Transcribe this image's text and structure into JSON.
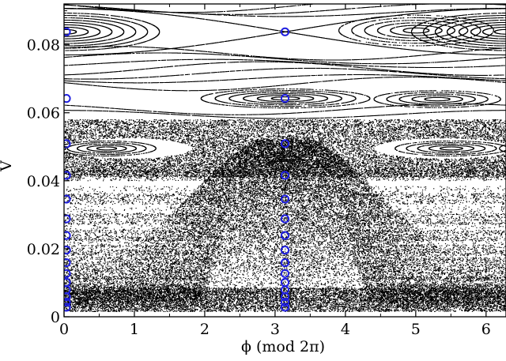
{
  "chart_data": {
    "type": "scatter",
    "title": "",
    "xlabel": "ϕ  (mod 2π)",
    "ylabel": "V",
    "xlim": [
      0,
      6.2832
    ],
    "ylim": [
      0,
      0.092
    ],
    "xticks": [
      0,
      1,
      2,
      3,
      4,
      5,
      6
    ],
    "yticks": [
      0,
      0.02,
      0.04,
      0.06,
      0.08
    ],
    "xtick_labels": [
      "0",
      "1",
      "2",
      "3",
      "4",
      "5",
      "6"
    ],
    "ytick_labels": [
      "0",
      "0.02",
      "0.04",
      "0.06",
      "0.08"
    ],
    "grid": false,
    "legend": null,
    "series": [
      {
        "marker": "black dots (phase-space orbits)",
        "color": "#000000",
        "points": "dense"
      },
      {
        "marker": "open circle",
        "color": "#1f1fe0",
        "x": [
          0,
          0,
          0,
          0,
          0,
          0,
          0,
          0,
          0,
          0,
          0,
          0,
          0,
          0,
          0,
          3.1416,
          3.1416,
          3.1416,
          3.1416,
          3.1416,
          3.1416,
          3.1416,
          3.1416,
          3.1416,
          3.1416,
          3.1416,
          3.1416,
          3.1416,
          3.1416,
          3.1416
        ],
        "y": [
          0.0838,
          0.0642,
          0.0509,
          0.0416,
          0.0346,
          0.0288,
          0.0239,
          0.0196,
          0.0159,
          0.0127,
          0.0101,
          0.0079,
          0.0059,
          0.0043,
          0.0028,
          0.0838,
          0.0642,
          0.0509,
          0.0416,
          0.0346,
          0.0288,
          0.0239,
          0.0196,
          0.0159,
          0.0127,
          0.0101,
          0.0079,
          0.0059,
          0.0043,
          0.0028
        ]
      }
    ]
  }
}
